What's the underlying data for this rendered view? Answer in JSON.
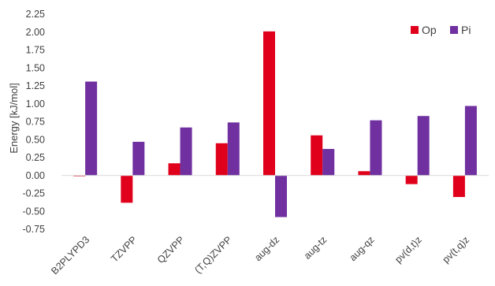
{
  "chart_data": {
    "type": "bar",
    "title": "",
    "xlabel": "",
    "ylabel": "Energy [kJ/mol]",
    "ylim": [
      -0.75,
      2.25
    ],
    "yticks": [
      "2.25",
      "2.00",
      "1.75",
      "1.50",
      "1.25",
      "1.00",
      "0.75",
      "0.50",
      "0.25",
      "0.00",
      "-0.25",
      "-0.50",
      "-0.75"
    ],
    "ytick_values": [
      2.25,
      2.0,
      1.75,
      1.5,
      1.25,
      1.0,
      0.75,
      0.5,
      0.25,
      0.0,
      -0.25,
      -0.5,
      -0.75
    ],
    "categories": [
      "B2PLYPD3",
      "TZVPP",
      "QZVPP",
      "(T,Q)ZVPP",
      "aug-dz",
      "aug-tz",
      "aug-qz",
      "pv(d,t)z",
      "pv(t,q)z"
    ],
    "series": [
      {
        "name": "Op",
        "color": "#e0001b",
        "values": [
          -0.01,
          -0.38,
          0.17,
          0.45,
          2.01,
          0.56,
          0.06,
          -0.12,
          -0.3
        ]
      },
      {
        "name": "Pi",
        "color": "#7030a0",
        "values": [
          1.31,
          0.47,
          0.67,
          0.74,
          -0.58,
          0.37,
          0.77,
          0.83,
          0.97
        ]
      }
    ],
    "grid": false,
    "legend_position": "top-right"
  }
}
